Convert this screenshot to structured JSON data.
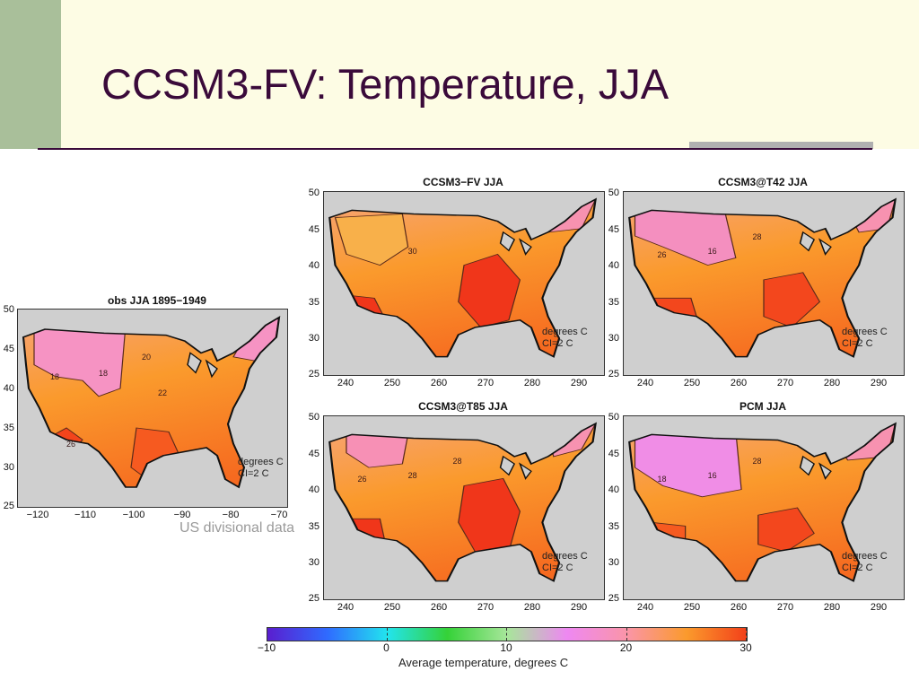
{
  "slide": {
    "title": "CCSM3-FV: Temperature, JJA",
    "source_note": "US divisional data",
    "colors": {
      "title": "#3a0a3a",
      "band": "#fdfce4",
      "accent": "#a9bf9a",
      "land_bg": "#cfcfcf"
    }
  },
  "chart_data": [
    {
      "type": "heatmap",
      "title": "obs JJA 1895−1949",
      "x_ticks": [
        "−120",
        "−110",
        "−100",
        "−90",
        "−80",
        "−70"
      ],
      "y_ticks": [
        "50",
        "45",
        "40",
        "35",
        "30",
        "25"
      ],
      "xlim": [
        -125,
        -66
      ],
      "ylim": [
        25,
        50
      ],
      "contour_labels": [
        "18",
        "18",
        "20",
        "22",
        "26"
      ],
      "units_note": [
        "degrees C",
        "CI=2 C"
      ]
    },
    {
      "type": "heatmap",
      "title": "CCSM3−FV JJA",
      "x_ticks": [
        "240",
        "250",
        "260",
        "270",
        "280",
        "290"
      ],
      "y_ticks": [
        "50",
        "45",
        "40",
        "35",
        "30",
        "25"
      ],
      "xlim": [
        235,
        295
      ],
      "ylim": [
        25,
        50
      ],
      "contour_labels": [
        "30"
      ],
      "units_note": [
        "degrees C",
        "CI=2 C"
      ]
    },
    {
      "type": "heatmap",
      "title": "CCSM3@T42 JJA",
      "x_ticks": [
        "240",
        "250",
        "260",
        "270",
        "280",
        "290"
      ],
      "y_ticks": [
        "50",
        "45",
        "40",
        "35",
        "30",
        "25"
      ],
      "xlim": [
        235,
        295
      ],
      "ylim": [
        25,
        50
      ],
      "contour_labels": [
        "16",
        "26",
        "28"
      ],
      "units_note": [
        "degrees C",
        "CI=2 C"
      ]
    },
    {
      "type": "heatmap",
      "title": "CCSM3@T85 JJA",
      "x_ticks": [
        "240",
        "250",
        "260",
        "270",
        "280",
        "290"
      ],
      "y_ticks": [
        "50",
        "45",
        "40",
        "35",
        "30",
        "25"
      ],
      "xlim": [
        235,
        295
      ],
      "ylim": [
        25,
        50
      ],
      "contour_labels": [
        "28",
        "26",
        "28"
      ],
      "units_note": [
        "degrees C",
        "CI=2 C"
      ]
    },
    {
      "type": "heatmap",
      "title": "PCM JJA",
      "x_ticks": [
        "240",
        "250",
        "260",
        "270",
        "280",
        "290"
      ],
      "y_ticks": [
        "50",
        "45",
        "40",
        "35",
        "30",
        "25"
      ],
      "xlim": [
        235,
        295
      ],
      "ylim": [
        25,
        50
      ],
      "contour_labels": [
        "16",
        "18",
        "28"
      ],
      "units_note": [
        "degrees C",
        "CI=2 C"
      ]
    }
  ],
  "colorbar": {
    "ticks": [
      "−10",
      "0",
      "10",
      "20",
      "30"
    ],
    "tick_values": [
      -10,
      0,
      10,
      20,
      30
    ],
    "range": [
      -10,
      30
    ],
    "label": "Average temperature, degrees C",
    "stops": [
      {
        "value": -10,
        "color": "#5a1ecf"
      },
      {
        "value": -5,
        "color": "#2f6bff"
      },
      {
        "value": 0,
        "color": "#22e4ee"
      },
      {
        "value": 5,
        "color": "#35d238"
      },
      {
        "value": 10,
        "color": "#a7e69a"
      },
      {
        "value": 15,
        "color": "#ee88f2"
      },
      {
        "value": 20,
        "color": "#fa95a8"
      },
      {
        "value": 25,
        "color": "#fb9a2c"
      },
      {
        "value": 30,
        "color": "#f2401a"
      }
    ]
  }
}
